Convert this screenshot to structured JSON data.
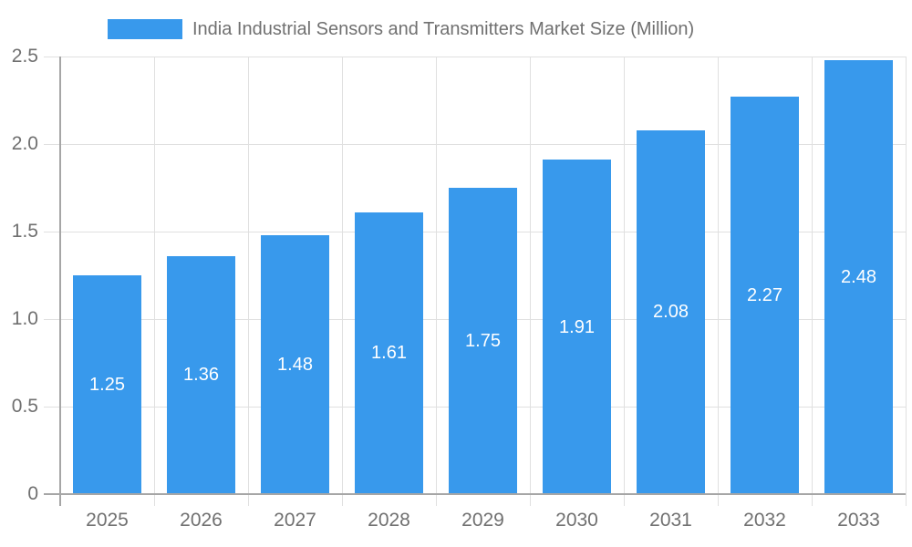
{
  "legend": {
    "label": "India Industrial Sensors and Transmitters Market Size (Million)"
  },
  "chart_data": {
    "type": "bar",
    "title": "",
    "xlabel": "",
    "ylabel": "",
    "categories": [
      "2025",
      "2026",
      "2027",
      "2028",
      "2029",
      "2030",
      "2031",
      "2032",
      "2033"
    ],
    "series": [
      {
        "name": "India Industrial Sensors and Transmitters Market Size (Million)",
        "values": [
          1.25,
          1.36,
          1.48,
          1.61,
          1.75,
          1.91,
          2.08,
          2.27,
          2.48
        ],
        "value_labels": [
          "1.25",
          "1.36",
          "1.48",
          "1.61",
          "1.75",
          "1.91",
          "2.08",
          "2.27",
          "2.48"
        ]
      }
    ],
    "ylim": [
      0,
      2.5
    ],
    "yticks": {
      "values": [
        0,
        0.5,
        1.0,
        1.5,
        2.0,
        2.5
      ],
      "labels": [
        "0",
        "0.5",
        "1.0",
        "1.5",
        "2.0",
        "2.5"
      ]
    },
    "grid": true,
    "legend_position": "top",
    "colors": {
      "bar": "#3899EC",
      "grid": "#E0E0E0",
      "axis": "#A6A6A6",
      "tick_text": "#707070",
      "bar_label_text": "#FFFFFF",
      "legend_text": "#707070"
    }
  }
}
